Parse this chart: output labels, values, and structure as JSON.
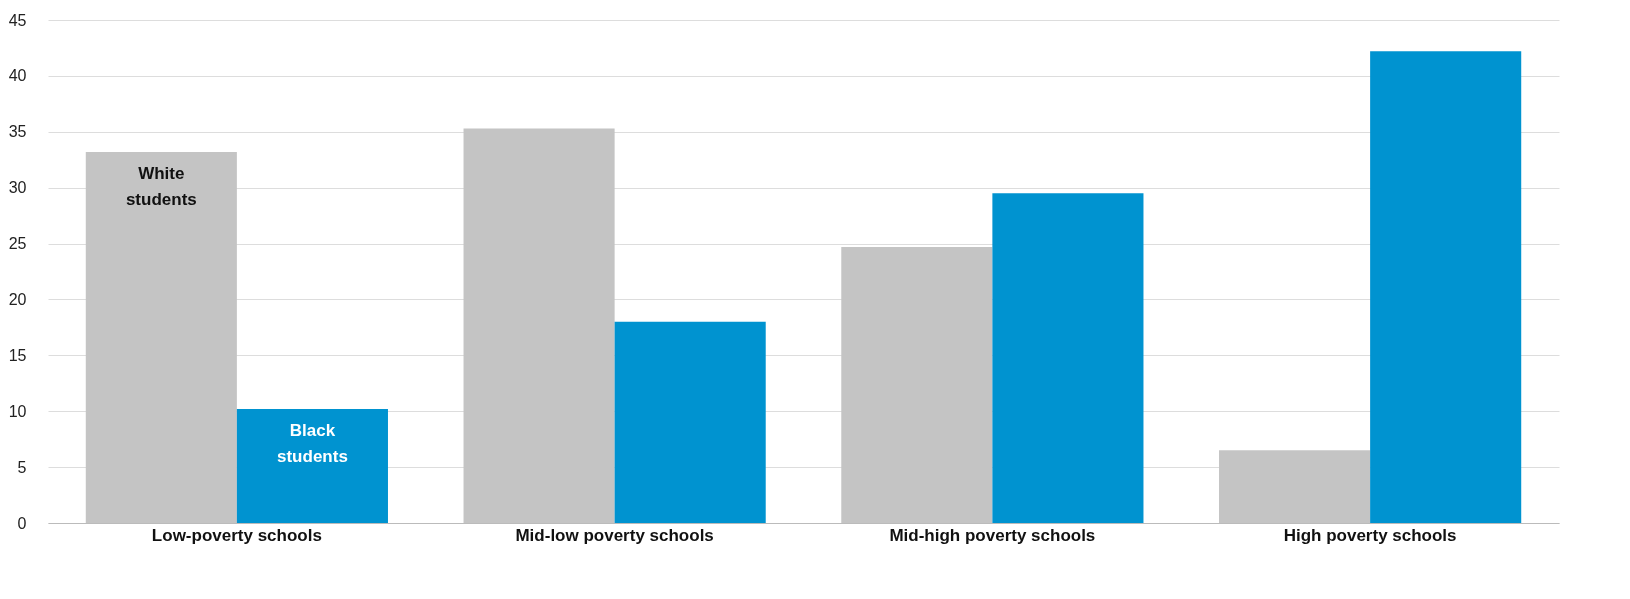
{
  "chart_data": {
    "type": "bar",
    "categories": [
      "Low-poverty schools",
      "Mid-low poverty schools",
      "Mid-high poverty schools",
      "High poverty schools"
    ],
    "series": [
      {
        "name": "White students",
        "color": "#c4c4c4",
        "values": [
          33.2,
          35.3,
          24.7,
          6.5
        ]
      },
      {
        "name": "Black students",
        "color": "#0093d0",
        "values": [
          10.2,
          18.0,
          29.5,
          42.2
        ]
      }
    ],
    "ylim": [
      0,
      45
    ],
    "yticks": [
      0,
      5,
      10,
      15,
      20,
      25,
      30,
      35,
      40,
      45
    ],
    "grid": "y"
  }
}
